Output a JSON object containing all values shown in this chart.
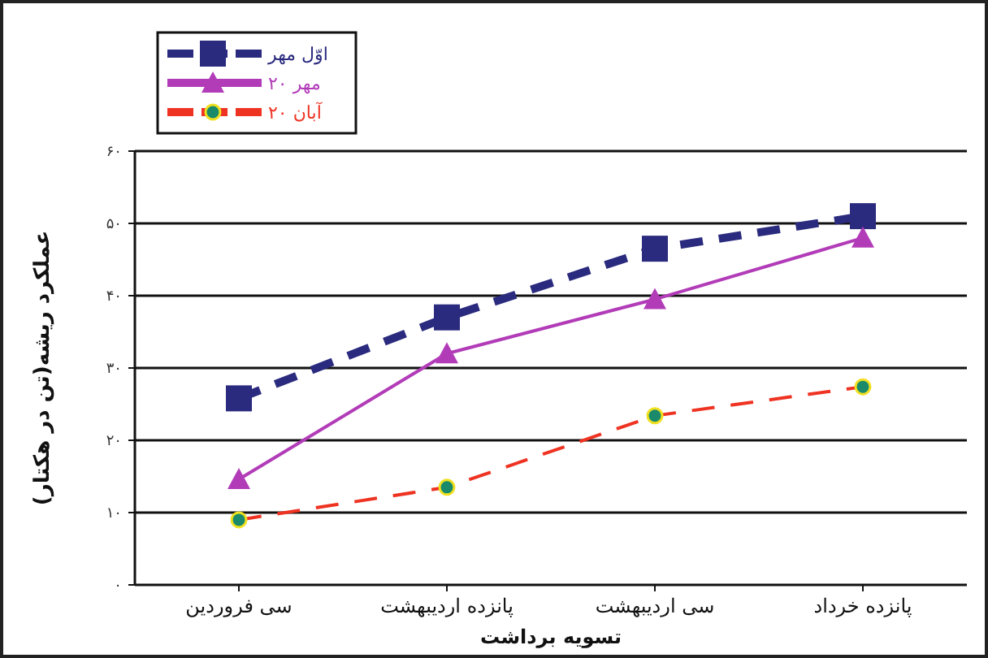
{
  "chart_data": {
    "type": "line",
    "xlabel": "تسویه برداشت",
    "ylabel": "عملکرد ریشه(تن در هکتار)",
    "categories": [
      "سی فروردین",
      "پانزده اردیبهشت",
      "سی اردیبهشت",
      "پانزده خرداد"
    ],
    "series": [
      {
        "name": "اوّل مهر",
        "color": "#2a2a7e",
        "values": [
          25.8,
          37,
          46.5,
          51
        ],
        "marker": "square",
        "line_style": "dashed"
      },
      {
        "name": "۲۰ مهر",
        "color": "#b23cb8",
        "values": [
          14.6,
          32,
          39.5,
          48
        ],
        "marker": "triangle",
        "line_style": "solid"
      },
      {
        "name": "۲۰ آبان",
        "color": "#ee3322",
        "values": [
          9,
          13.5,
          23.4,
          27.4
        ],
        "marker": "circle",
        "line_style": "dashed"
      }
    ],
    "ylim": [
      0,
      60
    ],
    "yticks": [
      {
        "value": 0,
        "label": "۰"
      },
      {
        "value": 10,
        "label": "۱۰"
      },
      {
        "value": 20,
        "label": "۲۰"
      },
      {
        "value": 30,
        "label": "۳۰"
      },
      {
        "value": 40,
        "label": "۴۰"
      },
      {
        "value": 50,
        "label": "۵۰"
      },
      {
        "value": 60,
        "label": "۶۰"
      }
    ],
    "grid": "y",
    "legend": "top left"
  }
}
